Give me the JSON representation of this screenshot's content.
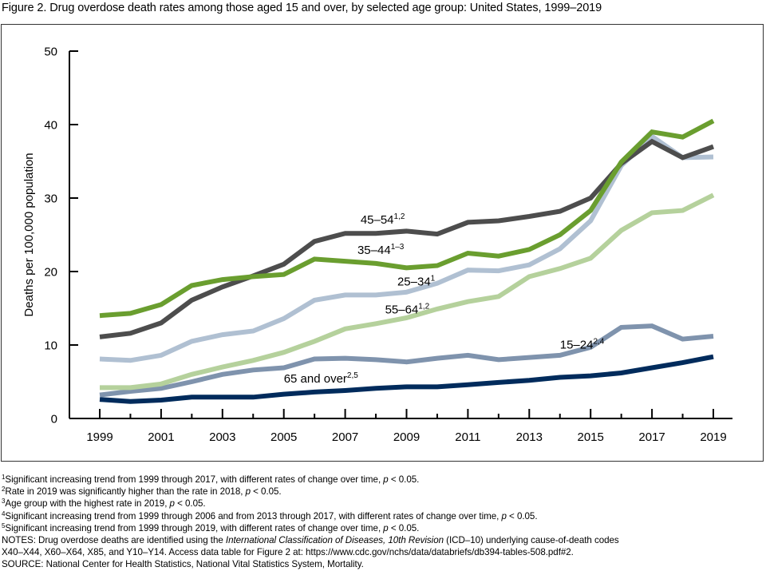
{
  "figure": {
    "title": "Figure 2. Drug overdose death rates among those aged 15 and over, by selected age group: United States, 1999–2019"
  },
  "chart_data": {
    "type": "line",
    "title": "Figure 2. Drug overdose death rates among those aged 15 and over, by selected age group: United States, 1999–2019",
    "xlabel": "",
    "ylabel": "Deaths per 100,000 population",
    "x": [
      1999,
      2000,
      2001,
      2002,
      2003,
      2004,
      2005,
      2006,
      2007,
      2008,
      2009,
      2010,
      2011,
      2012,
      2013,
      2014,
      2015,
      2016,
      2017,
      2018,
      2019
    ],
    "xticks": [
      "1999",
      "2001",
      "2003",
      "2005",
      "2007",
      "2009",
      "2011",
      "2013",
      "2015",
      "2017",
      "2019"
    ],
    "yticks": [
      "0",
      "10",
      "20",
      "30",
      "40",
      "50"
    ],
    "xlim": [
      1999,
      2019
    ],
    "ylim": [
      0,
      50
    ],
    "grid": false,
    "legend": "inline labels",
    "series": [
      {
        "name": "65 and over",
        "label": "65 and over",
        "superscript": "2,5",
        "color": "#002b5c",
        "values": [
          2.6,
          2.3,
          2.5,
          2.9,
          2.9,
          2.9,
          3.3,
          3.6,
          3.8,
          4.1,
          4.3,
          4.3,
          4.6,
          4.9,
          5.2,
          5.6,
          5.8,
          6.2,
          6.9,
          7.6,
          8.4
        ]
      },
      {
        "name": "15–24",
        "label": "15–24",
        "superscript": "2,4",
        "color": "#7f93ad",
        "values": [
          3.2,
          3.7,
          4.1,
          5.0,
          6.0,
          6.6,
          6.9,
          8.1,
          8.2,
          8.0,
          7.7,
          8.2,
          8.6,
          8.0,
          8.3,
          8.6,
          9.7,
          12.4,
          12.6,
          10.8,
          11.2
        ]
      },
      {
        "name": "55–64",
        "label": "55–64",
        "superscript": "1,2",
        "color": "#b5d19c",
        "values": [
          4.2,
          4.2,
          4.7,
          6.0,
          7.0,
          7.9,
          9.0,
          10.5,
          12.2,
          12.9,
          13.7,
          14.9,
          15.9,
          16.6,
          19.3,
          20.4,
          21.8,
          25.6,
          28.0,
          28.3,
          30.4
        ]
      },
      {
        "name": "25–34",
        "label": "25–34",
        "superscript": "1",
        "color": "#b0c0d2",
        "values": [
          8.1,
          7.9,
          8.6,
          10.5,
          11.4,
          11.9,
          13.6,
          16.1,
          16.8,
          16.8,
          17.2,
          18.4,
          20.2,
          20.1,
          20.9,
          23.1,
          26.9,
          34.4,
          38.4,
          35.5,
          35.6
        ]
      },
      {
        "name": "45–54",
        "label": "45–54",
        "superscript": "1,2",
        "color": "#4d4d4d",
        "values": [
          11.1,
          11.6,
          13.0,
          16.1,
          17.9,
          19.4,
          21.0,
          24.1,
          25.2,
          25.2,
          25.5,
          25.1,
          26.7,
          26.9,
          27.5,
          28.2,
          30.0,
          34.7,
          37.7,
          35.5,
          37.0
        ]
      },
      {
        "name": "35–44",
        "label": "35–44",
        "superscript": "1–3",
        "color": "#6a9e2f",
        "values": [
          14.0,
          14.3,
          15.5,
          18.1,
          18.9,
          19.3,
          19.6,
          21.7,
          21.4,
          21.1,
          20.5,
          20.8,
          22.5,
          22.1,
          23.0,
          25.0,
          28.3,
          34.9,
          39.0,
          38.3,
          40.5
        ]
      }
    ]
  },
  "footnotes": [
    {
      "mark": "1",
      "text": "Significant increasing trend from 1999 through 2017, with different rates of change over time, ",
      "p": "p",
      "tail": " < 0.05."
    },
    {
      "mark": "2",
      "text": "Rate in 2019 was significantly higher than the rate in 2018, ",
      "p": "p",
      "tail": " < 0.05."
    },
    {
      "mark": "3",
      "text": "Age group with the highest rate in 2019, ",
      "p": "p",
      "tail": " < 0.05."
    },
    {
      "mark": "4",
      "text": "Significant increasing trend from 1999 through 2006 and from 2013 through 2017, with different rates of change over time, ",
      "p": "p",
      "tail": " < 0.05."
    },
    {
      "mark": "5",
      "text": "Significant increasing trend from 1999 through 2019, with different rates of change over time, ",
      "p": "p",
      "tail": " < 0.05."
    }
  ],
  "notes": {
    "prefix": "NOTES: Drug overdose deaths are identified using the ",
    "italic": "International Classification of Diseases, 10th Revision",
    "suffix": " (ICD–10) underlying cause-of-death codes",
    "line2": "X40–X44, X60–X64, X85, and Y10–Y14. Access data table for Figure 2 at: https://www.cdc.gov/nchs/data/databriefs/db394-tables-508.pdf#2."
  },
  "source": "SOURCE: National Center for Health Statistics, National Vital Statistics System, Mortality."
}
